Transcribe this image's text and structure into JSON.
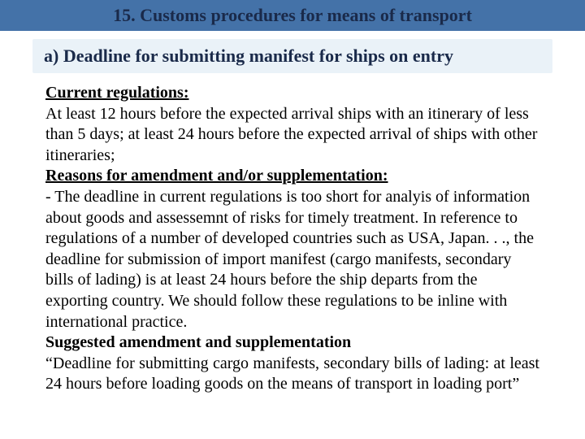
{
  "colors": {
    "header_bg": "#4472a8",
    "header_text": "#1a2a4a",
    "sub_header_bg": "#eaf2f8",
    "sub_header_text": "#1a2a4a",
    "body_text": "#000000",
    "page_bg": "#ffffff"
  },
  "typography": {
    "family": "Times New Roman",
    "header_size_pt": 17,
    "sub_header_size_pt": 17,
    "body_size_pt": 15
  },
  "header": {
    "title": "15. Customs procedures for means of transport"
  },
  "sub_header": {
    "text": "a) Deadline for submitting manifest for ships on entry"
  },
  "body": {
    "current_label": "Current regulations:",
    "current_text": "At least 12 hours before the expected arrival ships with an itinerary of less than 5 days; at least 24 hours before the expected arrival of ships with other itineraries;",
    "reasons_label": "Reasons for amendment and/or supplementation:",
    "reasons_text": "- The deadline in current regulations is too short for analyis of information about goods and assessemnt of risks for timely treatment. In reference to regulations of a number of developed countries such as USA, Japan. . ., the deadline for submission of import manifest (cargo manifests, secondary bills of lading) is at least 24 hours before the ship departs from the exporting country. We should follow these regulations to be inline with international practice.",
    "suggested_label": "Suggested amendment and supplementation",
    "suggested_text": "“Deadline for submitting cargo manifests, secondary bills of lading: at least 24 hours before loading goods on the means of transport in loading port”"
  }
}
